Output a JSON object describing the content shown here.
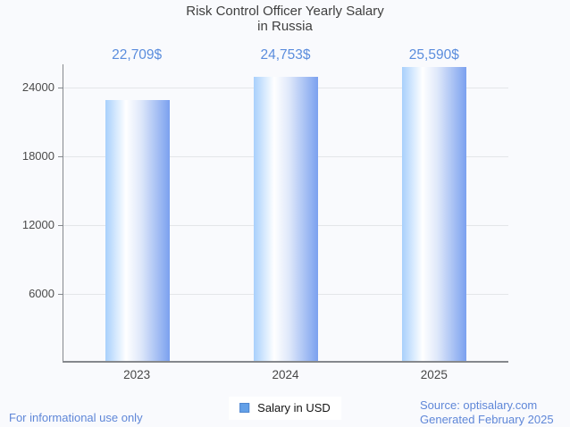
{
  "title": {
    "line1": "Risk Control Officer Yearly Salary",
    "line2": "in Russia"
  },
  "chart_data": {
    "type": "bar",
    "title": "Risk Control Officer Yearly Salary in Russia",
    "categories": [
      "2023",
      "2024",
      "2025"
    ],
    "series": [
      {
        "name": "Salary in USD",
        "values": [
          22709,
          24753,
          25590
        ]
      }
    ],
    "value_labels": [
      "22,709$",
      "24,753$",
      "25,590$"
    ],
    "xlabel": "",
    "ylabel": "",
    "yticks": [
      6000,
      12000,
      18000,
      24000
    ],
    "ylim": [
      0,
      26000
    ],
    "grid": true,
    "legend_position": "bottom-center",
    "bar_gradient": [
      "#a8d0fc",
      "#ffffff",
      "#7ba1ef"
    ]
  },
  "legend": {
    "label": "Salary in USD",
    "swatch_color": "#63a0e8"
  },
  "footer": {
    "disclaimer": "For informational use only",
    "source": "Source: optisalary.com",
    "generated": "Generated February 2025"
  },
  "colors": {
    "background": "#f9fafd",
    "title_text": "#3f3f3f",
    "value_label_text": "#5b8ddd",
    "footer_text": "#5f87d8",
    "axis_line": "#85888d",
    "gridline": "#e4e6e9",
    "tick_label_text": "#4b4b4b"
  }
}
